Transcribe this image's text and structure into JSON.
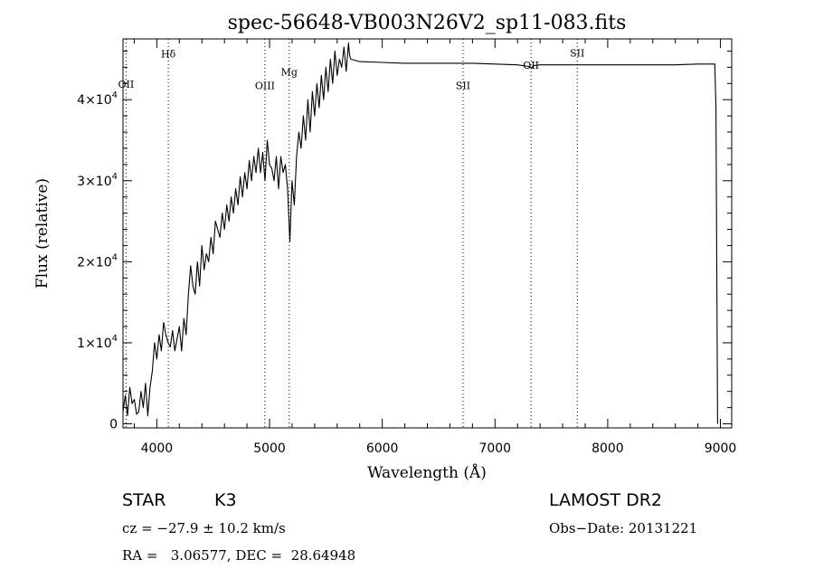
{
  "chart_data": {
    "type": "line",
    "title": "spec-56648-VB003N26V2_sp11-083.fits",
    "xlabel": "Wavelength (Å)",
    "ylabel": "Flux (relative)",
    "xlim": [
      3700,
      9100
    ],
    "ylim": [
      -500,
      47500
    ],
    "x_ticks": [
      {
        "value": 4000,
        "label": "4000"
      },
      {
        "value": 5000,
        "label": "5000"
      },
      {
        "value": 6000,
        "label": "6000"
      },
      {
        "value": 7000,
        "label": "7000"
      },
      {
        "value": 8000,
        "label": "8000"
      },
      {
        "value": 9000,
        "label": "9000"
      }
    ],
    "y_ticks": [
      {
        "value": 0,
        "mantissa": "0",
        "exponent": ""
      },
      {
        "value": 10000,
        "mantissa": "1×10",
        "exponent": "4"
      },
      {
        "value": 20000,
        "mantissa": "2×10",
        "exponent": "4"
      },
      {
        "value": 30000,
        "mantissa": "3×10",
        "exponent": "4"
      },
      {
        "value": 40000,
        "mantissa": "4×10",
        "exponent": "4"
      }
    ],
    "spectral_lines": [
      {
        "label": "OII",
        "wavelength": 3727,
        "label_flux": 41500
      },
      {
        "label": "Hδ",
        "wavelength": 4102,
        "label_flux": 45200
      },
      {
        "label": "OIII",
        "wavelength": 4959,
        "label_flux": 41300
      },
      {
        "label": "Mg",
        "wavelength": 5175,
        "label_flux": 43000
      },
      {
        "label": "SII",
        "wavelength": 6717,
        "label_flux": 41300
      },
      {
        "label": "OII",
        "wavelength": 7320,
        "label_flux": 43800
      },
      {
        "label": "SII",
        "wavelength": 7730,
        "label_flux": 45300
      }
    ],
    "series": [
      {
        "x": [
          3700,
          3720,
          3740,
          3760,
          3780,
          3800,
          3820,
          3840,
          3860,
          3880,
          3900,
          3920,
          3940,
          3960,
          3980,
          4000,
          4020,
          4040,
          4060,
          4080,
          4100,
          4120,
          4140,
          4160,
          4180,
          4200,
          4220,
          4240,
          4260,
          4280,
          4300,
          4320,
          4340,
          4360,
          4380,
          4400,
          4420,
          4440,
          4460,
          4480,
          4500,
          4520,
          4540,
          4560,
          4580,
          4600,
          4620,
          4640,
          4660,
          4680,
          4700,
          4720,
          4740,
          4760,
          4780,
          4800,
          4820,
          4840,
          4860,
          4880,
          4900,
          4920,
          4940,
          4960,
          4980,
          5000,
          5020,
          5040,
          5060,
          5080,
          5100,
          5120,
          5140,
          5160,
          5180,
          5200,
          5220,
          5240,
          5260,
          5280,
          5300,
          5320,
          5340,
          5360,
          5380,
          5400,
          5420,
          5440,
          5460,
          5480,
          5500,
          5520,
          5540,
          5560,
          5580,
          5600,
          5620,
          5640,
          5660,
          5680,
          5700,
          5710,
          5720,
          5800,
          6000,
          6200,
          6400,
          6600,
          6800,
          7000,
          7200,
          7300,
          7320,
          7340,
          7400,
          7600,
          7800,
          8000,
          8200,
          8400,
          8600,
          8800,
          8950,
          8960,
          8975
        ],
        "y": [
          1500,
          3500,
          1000,
          4500,
          2500,
          3000,
          1200,
          1500,
          4000,
          2000,
          5000,
          1000,
          4500,
          6500,
          10000,
          8000,
          11000,
          9000,
          12500,
          11000,
          10000,
          9500,
          11500,
          9000,
          10500,
          12000,
          9000,
          13000,
          11000,
          16000,
          19500,
          17000,
          16000,
          20000,
          17000,
          22000,
          19000,
          21000,
          20000,
          23000,
          21000,
          25000,
          24000,
          23000,
          26000,
          24000,
          27000,
          25000,
          28000,
          26000,
          29000,
          27000,
          30500,
          28000,
          31000,
          29000,
          32500,
          30000,
          33000,
          31000,
          34000,
          31000,
          33500,
          30000,
          35000,
          32000,
          31500,
          30000,
          33000,
          29000,
          33000,
          31000,
          32000,
          29000,
          22500,
          30000,
          27000,
          33000,
          36000,
          34000,
          38000,
          35000,
          40000,
          36000,
          41000,
          38000,
          42000,
          39000,
          43000,
          40000,
          44000,
          41000,
          45000,
          42000,
          46000,
          43000,
          45000,
          44000,
          46500,
          43500,
          47000,
          45500,
          45000,
          44700,
          44600,
          44500,
          44500,
          44500,
          44500,
          44400,
          44300,
          44100,
          43900,
          44200,
          44300,
          44300,
          44300,
          44300,
          44300,
          44300,
          44300,
          44400,
          44400,
          39000,
          0
        ]
      }
    ],
    "grid": false,
    "legend": "none"
  },
  "info": {
    "class_label": "STAR",
    "subclass": "K3",
    "cz": "cz = −27.9 ± 10.2 km/s",
    "radec": "RA =   3.06577, DEC =  28.64948",
    "survey": "LAMOST DR2",
    "obs_date": "Obs−Date: 20131221"
  }
}
